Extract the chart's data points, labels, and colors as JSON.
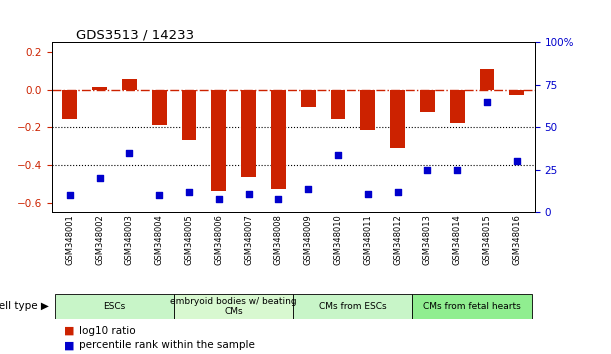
{
  "title": "GDS3513 / 14233",
  "samples": [
    "GSM348001",
    "GSM348002",
    "GSM348003",
    "GSM348004",
    "GSM348005",
    "GSM348006",
    "GSM348007",
    "GSM348008",
    "GSM348009",
    "GSM348010",
    "GSM348011",
    "GSM348012",
    "GSM348013",
    "GSM348014",
    "GSM348015",
    "GSM348016"
  ],
  "log10_ratio": [
    -0.155,
    0.015,
    0.055,
    -0.185,
    -0.265,
    -0.535,
    -0.46,
    -0.525,
    -0.09,
    -0.155,
    -0.215,
    -0.31,
    -0.12,
    -0.175,
    0.11,
    -0.03
  ],
  "percentile_rank": [
    10,
    20,
    35,
    10,
    12,
    8,
    11,
    8,
    14,
    34,
    11,
    12,
    25,
    25,
    65,
    30
  ],
  "cell_type_groups": [
    {
      "label": "ESCs",
      "start": 0,
      "end": 3
    },
    {
      "label": "embryoid bodies w/ beating\nCMs",
      "start": 4,
      "end": 7
    },
    {
      "label": "CMs from ESCs",
      "start": 8,
      "end": 11
    },
    {
      "label": "CMs from fetal hearts",
      "start": 12,
      "end": 15
    }
  ],
  "group_colors": [
    "#c8f5c8",
    "#d8f8d0",
    "#c8f5c8",
    "#90EE90"
  ],
  "bar_color": "#CC2200",
  "scatter_color": "#0000CC",
  "zero_line_color": "#CC2200",
  "dotted_line_color": "#000000",
  "ylim_left": [
    -0.65,
    0.25
  ],
  "ylim_right": [
    0,
    100
  ],
  "yticks_left": [
    -0.6,
    -0.4,
    -0.2,
    0.0,
    0.2
  ],
  "yticks_right": [
    0,
    25,
    50,
    75,
    100
  ],
  "ytick_labels_right": [
    "0",
    "25",
    "50",
    "75",
    "100%"
  ],
  "bar_width": 0.5,
  "figsize": [
    6.11,
    3.54
  ],
  "dpi": 100
}
